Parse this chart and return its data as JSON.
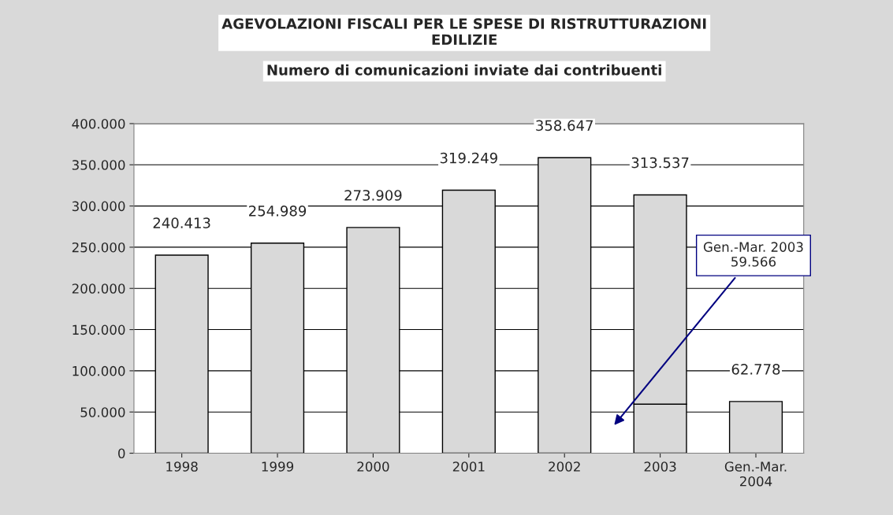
{
  "chart_data": {
    "type": "bar",
    "title": "AGEVOLAZIONI FISCALI PER LE SPESE DI RISTRUTTURAZIONI\nEDILIZIE",
    "subtitle": "Numero di comunicazioni inviate dai contribuenti",
    "categories": [
      "1998",
      "1999",
      "2000",
      "2001",
      "2002",
      "2003",
      "Gen.-Mar.\n2004"
    ],
    "stacked": true,
    "series": [
      {
        "color": "#d9d9d9",
        "values": [
          240413,
          254989,
          273909,
          319249,
          358647,
          59566,
          62778
        ]
      },
      {
        "color": "#d9d9d9",
        "values": [
          null,
          null,
          null,
          null,
          null,
          253971,
          null
        ]
      }
    ],
    "totals": [
      "240.413",
      "254.989",
      "273.909",
      "319.249",
      "358.647",
      "313.537",
      "62.778"
    ],
    "ylim": [
      0,
      400000
    ],
    "yticks": [
      {
        "value": 0,
        "label": "0"
      },
      {
        "value": 50000,
        "label": "50.000"
      },
      {
        "value": 100000,
        "label": "100.000"
      },
      {
        "value": 150000,
        "label": "150.000"
      },
      {
        "value": 200000,
        "label": "200.000"
      },
      {
        "value": 250000,
        "label": "250.000"
      },
      {
        "value": 300000,
        "label": "300.000"
      },
      {
        "value": 350000,
        "label": "350.000"
      },
      {
        "value": 400000,
        "label": "400.000"
      }
    ],
    "grid": "y",
    "annotations": [
      "Gen.-Mar. 2003\n59.566"
    ]
  }
}
